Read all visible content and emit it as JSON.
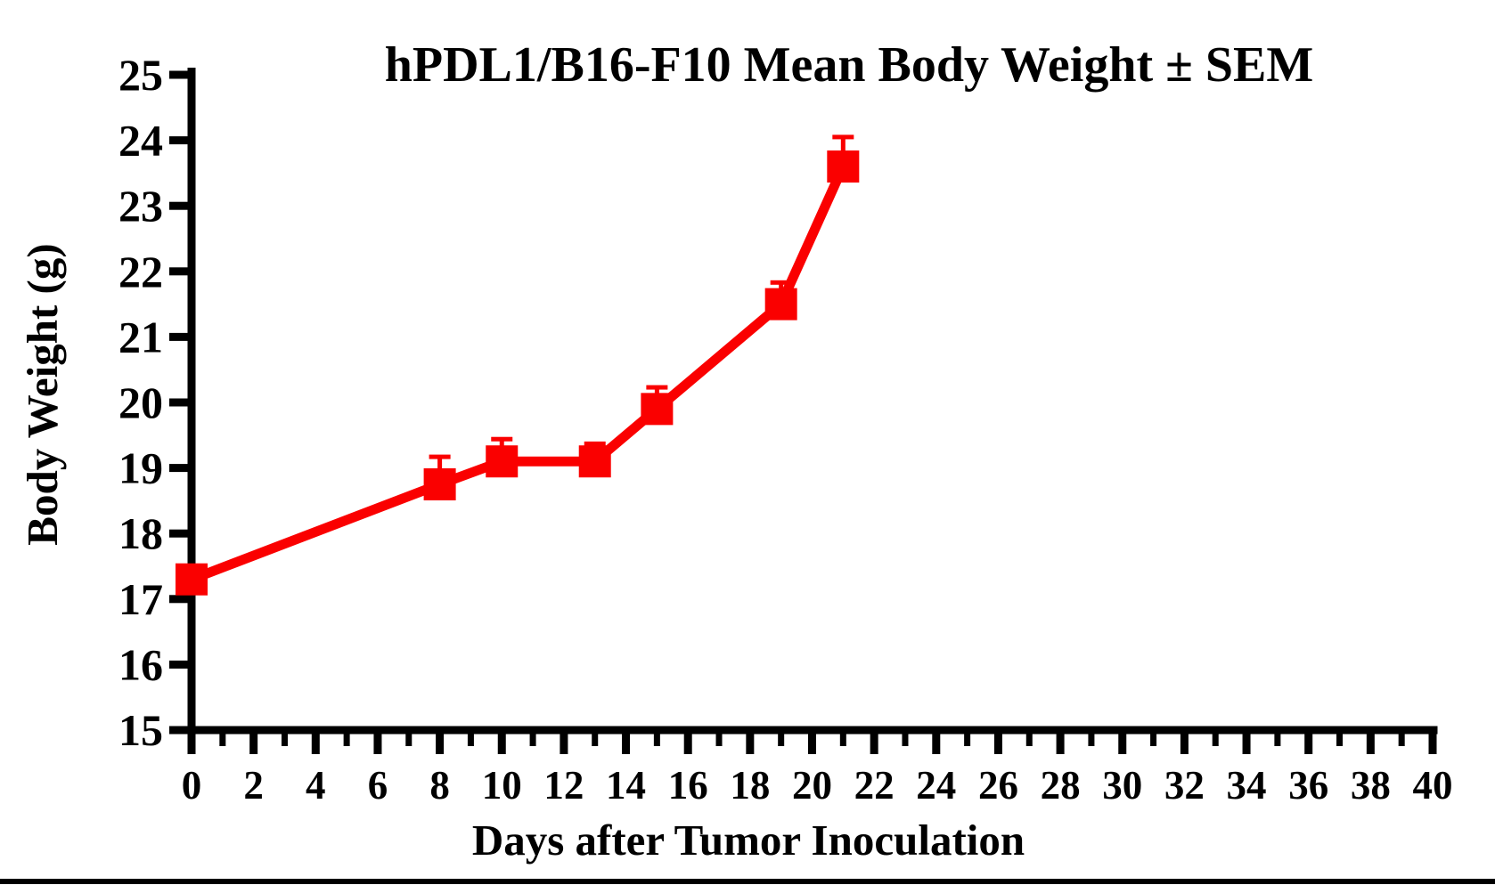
{
  "page": {
    "background": "#ffffff"
  },
  "chart_data": {
    "type": "line",
    "title": "hPDL1/B16-F10 Mean Body Weight ± SEM",
    "xlabel": "Days after Tumor Inoculation",
    "ylabel": "Body Weight (g)",
    "x": [
      0,
      8,
      10,
      13,
      15,
      19,
      21
    ],
    "series": [
      {
        "name": "hPDL1/B16-F10 mean body weight",
        "values": [
          17.3,
          18.75,
          19.1,
          19.1,
          19.9,
          21.5,
          23.6
        ],
        "sem": [
          0.1,
          0.42,
          0.34,
          0.27,
          0.33,
          0.33,
          0.45
        ],
        "color": "#FA0000",
        "marker": "square"
      }
    ],
    "error_bars": "upper SEM only",
    "xlim": [
      0,
      40
    ],
    "ylim": [
      15,
      25
    ],
    "xticks": [
      0,
      2,
      4,
      6,
      8,
      10,
      12,
      14,
      16,
      18,
      20,
      22,
      24,
      26,
      28,
      30,
      32,
      34,
      36,
      38,
      40
    ],
    "xticks_minor": [
      1,
      3,
      5,
      7,
      9,
      11,
      13,
      15,
      17,
      19,
      21,
      23,
      25,
      27,
      29,
      31,
      33,
      35,
      37,
      39
    ],
    "yticks": [
      15,
      16,
      17,
      18,
      19,
      20,
      21,
      22,
      23,
      24,
      25
    ],
    "grid": false,
    "legend": false,
    "axis_color": "#000000"
  },
  "footer": {
    "bar_color": "#000000"
  }
}
